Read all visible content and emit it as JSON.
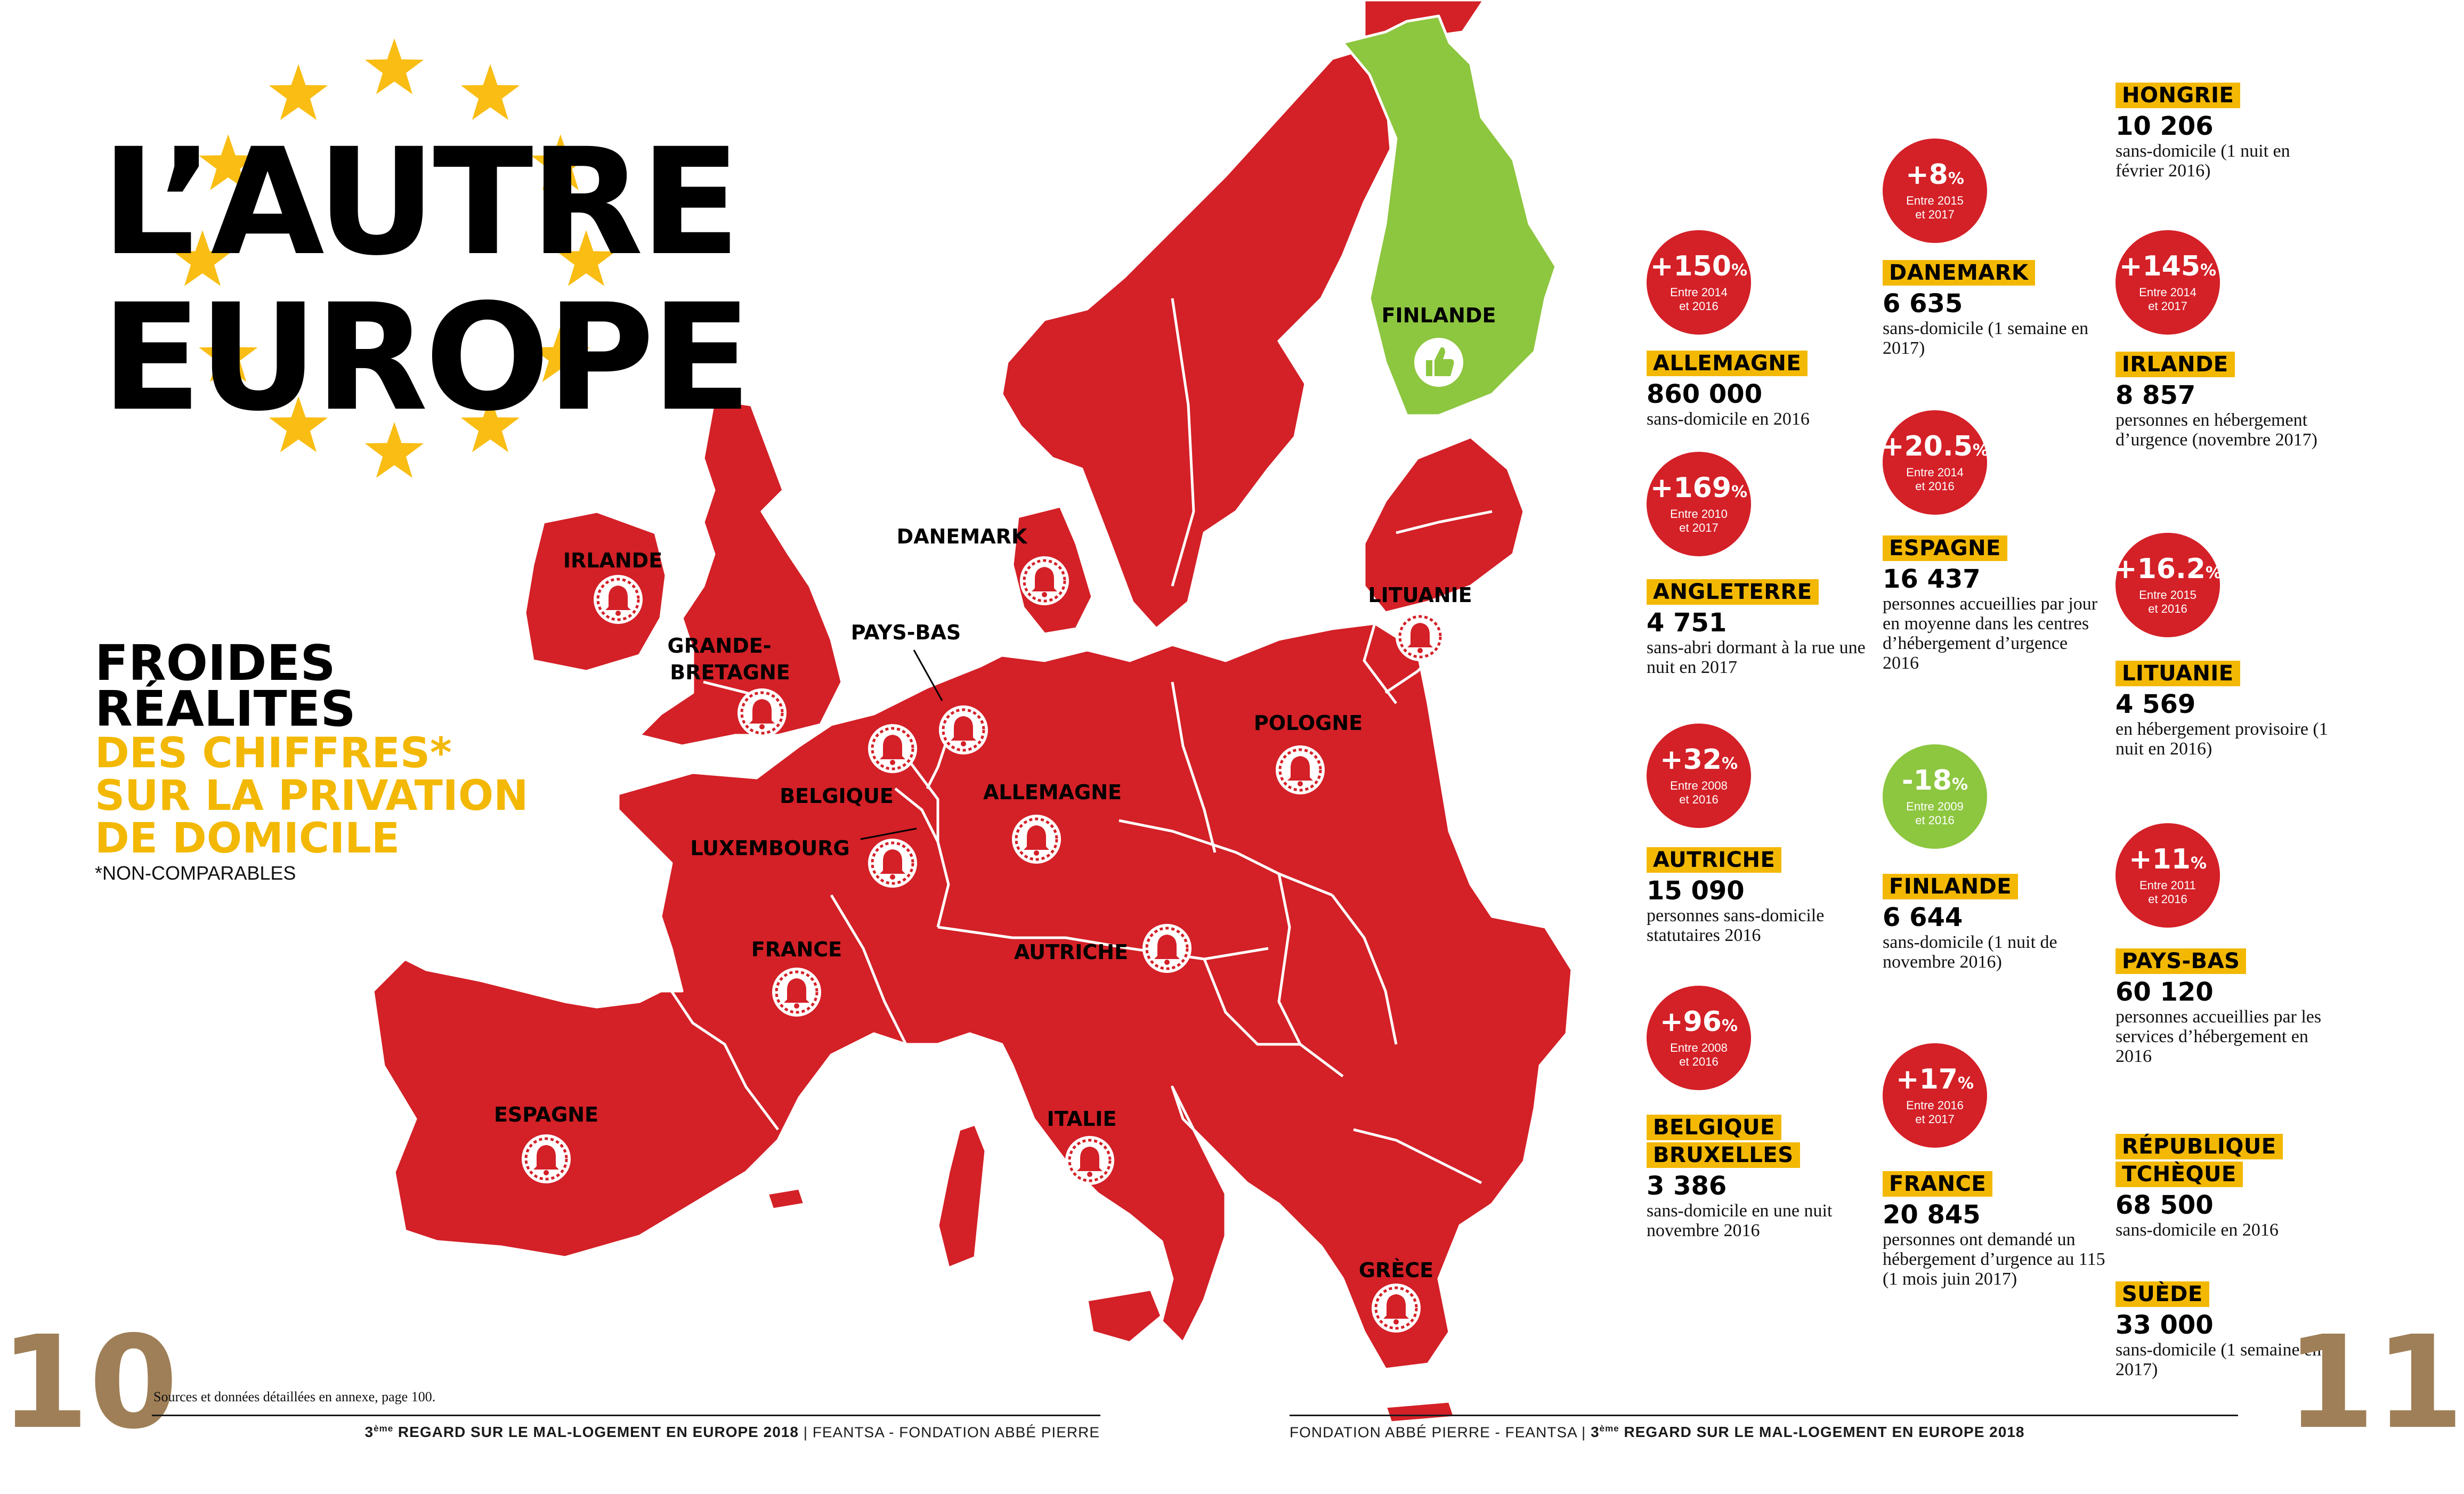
{
  "title": {
    "line1": "L’AUTRE",
    "line2": "EUROPE"
  },
  "subtitle": {
    "line1": "FROIDES",
    "line2": "RÉALITES",
    "line3": "DES CHIFFRES*",
    "line4": "SUR LA PRIVATION",
    "line5": "DE DOMICILE",
    "note": "*NON-COMPARABLES"
  },
  "colors": {
    "increase": "#D42027",
    "decrease": "#8DC63F",
    "highlight": "#F3B804",
    "page_number": "#9F7F57"
  },
  "legend_icons": {
    "increase": "bell-alarm-icon",
    "decrease": "thumbs-up-icon"
  },
  "map_labels": {
    "irlande": "IRLANDE",
    "grande_bretagne_1": "GRANDE-",
    "grande_bretagne_2": "BRETAGNE",
    "danemark": "DANEMARK",
    "pays_bas": "PAYS-BAS",
    "belgique": "BELGIQUE",
    "luxembourg": "LUXEMBOURG",
    "allemagne": "ALLEMAGNE",
    "france": "FRANCE",
    "espagne": "ESPAGNE",
    "italie": "ITALIE",
    "autriche": "AUTRICHE",
    "pologne": "POLOGNE",
    "lituanie": "LITUANIE",
    "finlande": "FINLANDE",
    "grece": "GRÈCE"
  },
  "stats": {
    "allemagne": {
      "pct": "+150",
      "sign": "%",
      "period": "Entre 2014 et 2016",
      "country": "ALLEMAGNE",
      "value": "860 000",
      "desc": "sans-domicile en 2016"
    },
    "angleterre": {
      "pct": "+169",
      "sign": "%",
      "period": "Entre 2010 et 2017",
      "country": "ANGLETERRE",
      "value": "4 751",
      "desc": "sans-abri dormant à la rue une nuit en 2017"
    },
    "autriche": {
      "pct": "+32",
      "sign": "%",
      "period": "Entre 2008 et 2016",
      "country": "AUTRICHE",
      "value": "15 090",
      "desc": "personnes sans-domicile statutaires 2016"
    },
    "belgique": {
      "pct": "+96",
      "sign": "%",
      "period": "Entre 2008 et 2016",
      "country1": "BELGIQUE",
      "country2": "BRUXELLES",
      "value": "3 386",
      "desc": "sans-domicile en une nuit novembre 2016"
    },
    "danemark": {
      "pct": "+8",
      "sign": "%",
      "period": "Entre 2015 et 2017",
      "country": "DANEMARK",
      "value": "6 635",
      "desc": "sans-domicile (1 semaine en 2017)"
    },
    "espagne": {
      "pct": "+20.5",
      "sign": "%",
      "period": "Entre 2014 et 2016",
      "country": "ESPAGNE",
      "value": "16 437",
      "desc": "personnes accueillies par jour en moyenne dans les centres d’hébergement d’urgence 2016"
    },
    "finlande": {
      "pct": "-18",
      "sign": "%",
      "period": "Entre 2009 et 2016",
      "country": "FINLANDE",
      "value": "6 644",
      "desc": "sans-domicile (1 nuit de novembre 2016)"
    },
    "france": {
      "pct": "+17",
      "sign": "%",
      "period": "Entre 2016 et 2017",
      "country": "FRANCE",
      "value": "20 845",
      "desc": "personnes ont demandé un hébergement d’urgence au 115 (1 mois juin 2017)"
    },
    "hongrie": {
      "country": "HONGRIE",
      "value": "10 206",
      "desc": "sans-domicile (1 nuit en février 2016)"
    },
    "irlande": {
      "pct": "+145",
      "sign": "%",
      "period": "Entre 2014 et 2017",
      "country": "IRLANDE",
      "value": "8 857",
      "desc": "personnes en hébergement d’urgence (novembre 2017)"
    },
    "lituanie": {
      "pct": "+16.2",
      "sign": "%",
      "period": "Entre 2015 et 2016",
      "country": "LITUANIE",
      "value": "4 569",
      "desc": "en hébergement provisoire (1 nuit en 2016)"
    },
    "pays_bas": {
      "pct": "+11",
      "sign": "%",
      "period": "Entre 2011 et 2016",
      "country": "PAYS-BAS",
      "value": "60 120",
      "desc": "personnes accueillies par les services d’hébergement en 2016"
    },
    "tcheque": {
      "country1": "RÉPUBLIQUE",
      "country2": "TCHÈQUE",
      "value": "68 500",
      "desc": "sans-domicile en 2016"
    },
    "suede": {
      "country": "SUÈDE",
      "value": "33 000",
      "desc": "sans-domicile (1 semaine en 2017)"
    }
  },
  "footer": {
    "page_left": "10",
    "page_right": "11",
    "sources": "Sources et données détaillées en annexe, page 100.",
    "left_num": "3",
    "left_sup": "ème",
    "left_bold": " REGARD SUR LE MAL-LOGEMENT EN EUROPE 2018",
    "left_rest": " | FEANTSA - FONDATION ABBÉ PIERRE",
    "right_rest": "FONDATION ABBÉ PIERRE - FEANTSA | ",
    "right_num": "3",
    "right_sup": "ème",
    "right_bold": " REGARD SUR LE MAL-LOGEMENT EN EUROPE 2018"
  }
}
